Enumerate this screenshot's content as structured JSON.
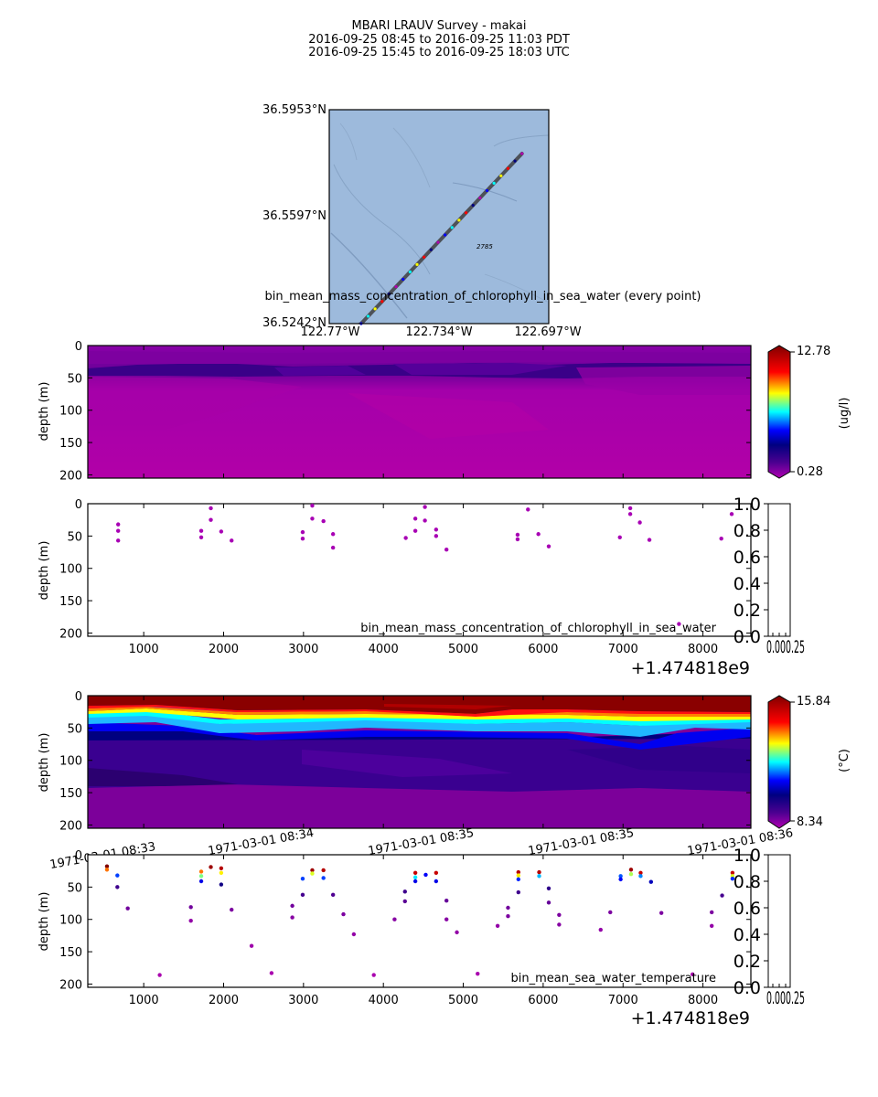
{
  "title_lines": [
    "MBARI LRAUV Survey - makai",
    "2016-09-25 08:45  to  2016-09-25 11:03 PDT",
    "2016-09-25 15:45  to  2016-09-25 18:03 UTC"
  ],
  "colors": {
    "track": "#4d5158",
    "map_water": "#9dbadc",
    "jet_stops": [
      "#000080",
      "#0000ff",
      "#00ffff",
      "#ffff00",
      "#ff0000",
      "#800000"
    ],
    "low_color": "#b000b0"
  },
  "map": {
    "lat_labels": [
      "36.5953°N",
      "36.5597°N",
      "36.5242°N"
    ],
    "lon_labels": [
      "122.77°W",
      "122.734°W",
      "122.697°W"
    ],
    "lat_range": [
      36.5242,
      36.5953
    ],
    "lon_range": [
      -122.77,
      -122.697
    ],
    "contour_label": "2785",
    "track": {
      "start": [
        -122.7594,
        36.5242
      ],
      "end": [
        -122.7059,
        36.5807
      ]
    }
  },
  "time_axis": {
    "ticks": [
      1000,
      2000,
      3000,
      4000,
      5000,
      6000,
      7000,
      8000
    ],
    "offset_label": "+1.474818e9",
    "range": [
      300,
      8600
    ],
    "date_labels": [
      "1971-03-01 08:33",
      "1971-03-01 08:34",
      "1971-03-01 08:35",
      "1971-03-01 08:35",
      "1971-03-01 08:36"
    ]
  },
  "depth_axis": {
    "label": "depth (m)",
    "ticks": [
      0,
      50,
      100,
      150,
      200
    ],
    "range": [
      0,
      205
    ]
  },
  "colorbar_empty": {
    "ticks": [
      "0.0",
      "0.2",
      "0.4",
      "0.6",
      "0.8",
      "1.0"
    ],
    "x_ticks_text": "0.000.25"
  },
  "panels": {
    "chl_section": {
      "label": "bin_mean_mass_concentration_of_chlorophyll_in_sea_water (every point)",
      "colorbar": {
        "max_label": "12.78",
        "min_label": "0.28",
        "unit": "(ug/l)",
        "range": [
          0.28,
          12.78
        ]
      }
    },
    "chl_points": {
      "label": "bin_mean_mass_concentration_of_chlorophyll_in_sea_water"
    },
    "temp_section": {
      "colorbar": {
        "max_label": "15.84",
        "min_label": "8.34",
        "unit": "(°C)",
        "range": [
          8.34,
          15.84
        ]
      }
    },
    "temp_points": {
      "label": "bin_mean_sea_water_temperature"
    }
  },
  "chart_data": [
    {
      "type": "scatter",
      "name": "chl_points",
      "xlim": [
        300,
        8600
      ],
      "ylim": [
        205,
        0
      ],
      "points": [
        [
          680,
          32
        ],
        [
          680,
          42
        ],
        [
          680,
          57
        ],
        [
          1720,
          42
        ],
        [
          1720,
          52
        ],
        [
          1840,
          7
        ],
        [
          1840,
          25
        ],
        [
          1970,
          43
        ],
        [
          2100,
          57
        ],
        [
          2990,
          44
        ],
        [
          2990,
          54
        ],
        [
          3110,
          3
        ],
        [
          3110,
          23
        ],
        [
          3250,
          27
        ],
        [
          3370,
          47
        ],
        [
          3370,
          68
        ],
        [
          4280,
          53
        ],
        [
          4400,
          23
        ],
        [
          4400,
          42
        ],
        [
          4520,
          5
        ],
        [
          4520,
          26
        ],
        [
          4660,
          40
        ],
        [
          4660,
          50
        ],
        [
          4790,
          71
        ],
        [
          5680,
          48
        ],
        [
          5680,
          55
        ],
        [
          5810,
          9
        ],
        [
          5940,
          47
        ],
        [
          6070,
          66
        ],
        [
          6960,
          52
        ],
        [
          7090,
          7
        ],
        [
          7090,
          16
        ],
        [
          7210,
          29
        ],
        [
          7330,
          56
        ],
        [
          7700,
          186
        ],
        [
          8230,
          54
        ],
        [
          8360,
          16
        ]
      ]
    },
    {
      "type": "scatter",
      "name": "temp_points",
      "xlim": [
        300,
        8600
      ],
      "ylim": [
        205,
        0
      ],
      "points": [
        [
          540,
          18,
          15.84
        ],
        [
          540,
          23,
          13.8
        ],
        [
          670,
          32,
          11.3
        ],
        [
          670,
          50,
          9.4
        ],
        [
          800,
          83,
          8.9
        ],
        [
          1200,
          186,
          8.4
        ],
        [
          1590,
          81,
          8.9
        ],
        [
          1590,
          102,
          8.6
        ],
        [
          1720,
          26,
          13.8
        ],
        [
          1720,
          33,
          12.6
        ],
        [
          1720,
          41,
          10.9
        ],
        [
          1840,
          19,
          15.5
        ],
        [
          1970,
          21,
          15.2
        ],
        [
          1970,
          28,
          13.2
        ],
        [
          1970,
          46,
          10.0
        ],
        [
          2100,
          85,
          8.8
        ],
        [
          2350,
          141,
          8.5
        ],
        [
          2600,
          183,
          8.4
        ],
        [
          2860,
          79,
          8.9
        ],
        [
          2860,
          97,
          8.7
        ],
        [
          2990,
          37,
          11.3
        ],
        [
          2990,
          62,
          9.3
        ],
        [
          3110,
          24,
          15.5
        ],
        [
          3110,
          29,
          13.0
        ],
        [
          3250,
          24,
          15.2
        ],
        [
          3250,
          36,
          11.3
        ],
        [
          3370,
          62,
          9.2
        ],
        [
          3500,
          92,
          8.8
        ],
        [
          3630,
          123,
          8.6
        ],
        [
          3880,
          186,
          8.4
        ],
        [
          4140,
          100,
          8.7
        ],
        [
          4270,
          57,
          9.4
        ],
        [
          4270,
          72,
          9.1
        ],
        [
          4400,
          28,
          15.0
        ],
        [
          4400,
          35,
          12.0
        ],
        [
          4400,
          41,
          10.9
        ],
        [
          4530,
          31,
          11.0
        ],
        [
          4660,
          28,
          15.0
        ],
        [
          4660,
          41,
          10.9
        ],
        [
          4790,
          71,
          9.0
        ],
        [
          4790,
          100,
          8.7
        ],
        [
          4920,
          120,
          8.6
        ],
        [
          5180,
          184,
          8.4
        ],
        [
          5430,
          110,
          8.6
        ],
        [
          5560,
          82,
          8.9
        ],
        [
          5560,
          95,
          8.8
        ],
        [
          5690,
          27,
          15.2
        ],
        [
          5690,
          32,
          13.2
        ],
        [
          5690,
          38,
          11.2
        ],
        [
          5690,
          58,
          9.4
        ],
        [
          5950,
          27,
          15.2
        ],
        [
          5950,
          33,
          11.8
        ],
        [
          6070,
          52,
          9.6
        ],
        [
          6070,
          74,
          9.0
        ],
        [
          6200,
          93,
          8.8
        ],
        [
          6200,
          108,
          8.7
        ],
        [
          6720,
          116,
          8.6
        ],
        [
          6840,
          89,
          8.8
        ],
        [
          6970,
          33,
          11.4
        ],
        [
          6970,
          38,
          11.0
        ],
        [
          7100,
          23,
          15.5
        ],
        [
          7100,
          30,
          12.8
        ],
        [
          7220,
          28,
          15.0
        ],
        [
          7220,
          33,
          11.6
        ],
        [
          7350,
          42,
          10.6
        ],
        [
          7480,
          90,
          8.8
        ],
        [
          7870,
          185,
          8.4
        ],
        [
          8110,
          89,
          8.8
        ],
        [
          8110,
          110,
          8.6
        ],
        [
          8240,
          63,
          9.3
        ],
        [
          8370,
          28,
          15.0
        ],
        [
          8370,
          33,
          13.0
        ],
        [
          8370,
          37,
          11.2
        ]
      ]
    }
  ]
}
